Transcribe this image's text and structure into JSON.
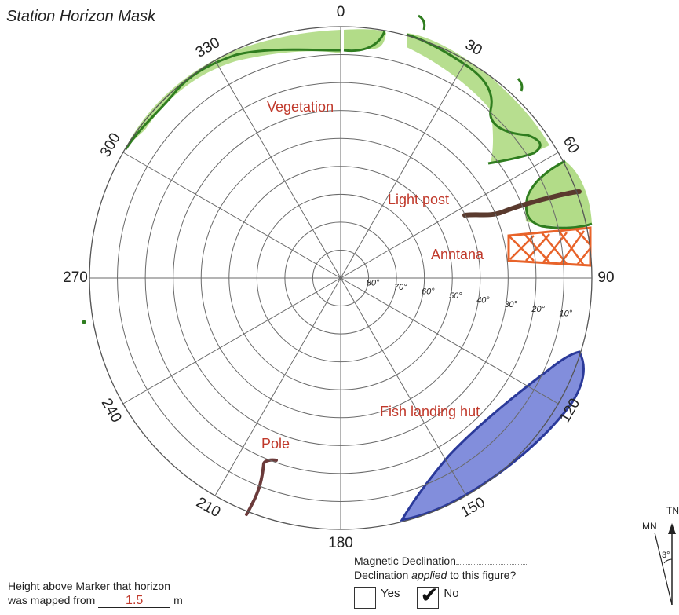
{
  "title": "Station Horizon Mask",
  "azimuth_labels": [
    {
      "az": 0,
      "text": "0"
    },
    {
      "az": 30,
      "text": "30"
    },
    {
      "az": 60,
      "text": "60"
    },
    {
      "az": 90,
      "text": "90"
    },
    {
      "az": 120,
      "text": "120"
    },
    {
      "az": 150,
      "text": "150"
    },
    {
      "az": 180,
      "text": "180"
    },
    {
      "az": 210,
      "text": "210"
    },
    {
      "az": 240,
      "text": "240"
    },
    {
      "az": 270,
      "text": "270"
    },
    {
      "az": 300,
      "text": "300"
    },
    {
      "az": 330,
      "text": "330"
    }
  ],
  "elevation_labels": [
    "80°",
    "70°",
    "60°",
    "50°",
    "40°",
    "30°",
    "20°",
    "10°"
  ],
  "obstructions": [
    {
      "label": "Vegetation",
      "color": "#7ab648"
    },
    {
      "label": "Light post",
      "color": "#5a3a2e"
    },
    {
      "label": "Anntana",
      "color": "#e8632a"
    },
    {
      "label": "Fish landing hut",
      "color": "#4a5bc4"
    },
    {
      "label": "Pole",
      "color": "#6b3a3a"
    }
  ],
  "height": {
    "line1": "Height above Marker that horizon",
    "line2_prefix": "was mapped from",
    "value": "1.5",
    "unit": "m"
  },
  "declination": {
    "label": "Magnetic Declination",
    "question_prefix": "Declination ",
    "question_emph": "applied",
    "question_suffix": " to this figure?",
    "yes_label": "Yes",
    "no_label": "No",
    "selected": "No"
  },
  "compass": {
    "tn_label": "TN",
    "mn_label": "MN",
    "angle_label": "3°"
  }
}
